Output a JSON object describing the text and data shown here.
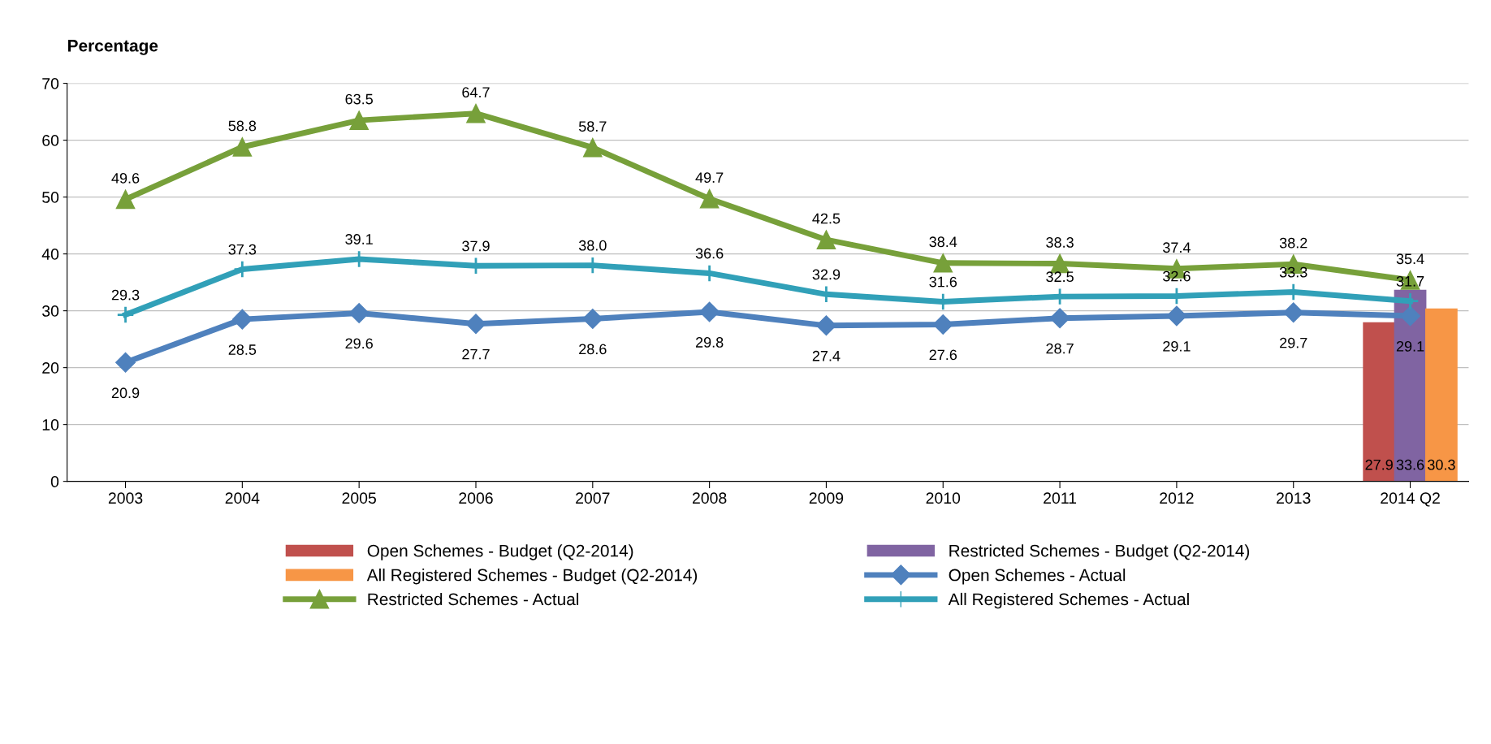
{
  "chart_data": {
    "type": "line",
    "ylabel": "Percentage",
    "categories": [
      "2003",
      "2004",
      "2005",
      "2006",
      "2007",
      "2008",
      "2009",
      "2010",
      "2011",
      "2012",
      "2013",
      "2014 Q2"
    ],
    "ylim": [
      0,
      70
    ],
    "yticks": [
      0,
      10,
      20,
      30,
      40,
      50,
      60,
      70
    ],
    "grid": "y",
    "legend": "bottom",
    "data_labels": true,
    "series": [
      {
        "name": "Open Schemes - Budget (Q2-2014)",
        "type": "bar",
        "color": "#c0504d",
        "values": [
          null,
          null,
          null,
          null,
          null,
          null,
          null,
          null,
          null,
          null,
          null,
          27.9
        ]
      },
      {
        "name": "Restricted Schemes - Budget (Q2-2014)",
        "type": "bar",
        "color": "#8064a2",
        "values": [
          null,
          null,
          null,
          null,
          null,
          null,
          null,
          null,
          null,
          null,
          null,
          33.6
        ]
      },
      {
        "name": "All Registered Schemes - Budget (Q2-2014)",
        "type": "bar",
        "color": "#f79646",
        "values": [
          null,
          null,
          null,
          null,
          null,
          null,
          null,
          null,
          null,
          null,
          null,
          30.3
        ]
      },
      {
        "name": "Open Schemes - Actual",
        "color": "#4f81bd",
        "marker": "diamond",
        "values": [
          20.9,
          28.5,
          29.6,
          27.7,
          28.6,
          29.8,
          27.4,
          27.6,
          28.7,
          29.1,
          29.7,
          29.1
        ]
      },
      {
        "name": "Restricted Schemes - Actual",
        "color": "#77a03a",
        "marker": "triangle",
        "values": [
          49.6,
          58.8,
          63.5,
          64.7,
          58.7,
          49.7,
          42.5,
          38.4,
          38.3,
          37.4,
          38.2,
          35.4
        ]
      },
      {
        "name": "All Registered Schemes - Actual",
        "color": "#31a0b8",
        "marker": "cross",
        "values": [
          29.3,
          37.3,
          39.1,
          37.9,
          38.0,
          36.6,
          32.9,
          31.6,
          32.5,
          32.6,
          33.3,
          31.7
        ],
        "value_labels": [
          "29.3",
          "37.3",
          "39.1",
          "37.9",
          "38.0",
          "36.6",
          "32.9",
          "31.6",
          "32.5",
          "32.6",
          "33.3",
          "31.7"
        ]
      }
    ]
  }
}
